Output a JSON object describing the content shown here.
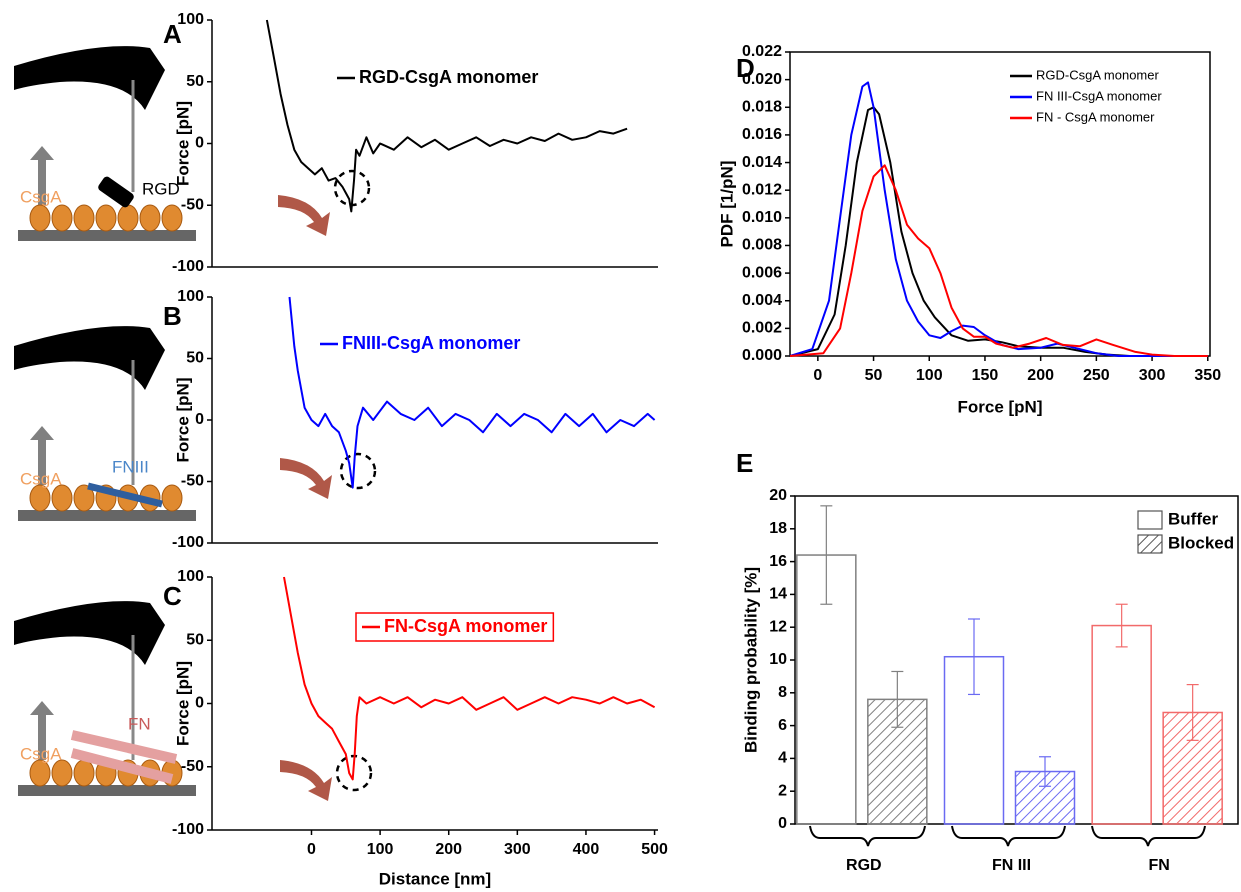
{
  "panels": [
    "A",
    "B",
    "C",
    "D",
    "E"
  ],
  "schematics": [
    {
      "substrate": "CsgA",
      "ligand": "RGD"
    },
    {
      "substrate": "CsgA",
      "ligand": "FNIII"
    },
    {
      "substrate": "CsgA",
      "ligand": "FN"
    }
  ],
  "chart_data": [
    {
      "type": "line",
      "ylabel": "Force [pN]",
      "xlim": [
        -145,
        505
      ],
      "ylim": [
        -100,
        100
      ],
      "yticks": [
        -100,
        -50,
        0,
        50,
        100
      ],
      "x": [
        -65,
        -55,
        -45,
        -35,
        -25,
        -15,
        -5,
        5,
        15,
        25,
        35,
        45,
        50,
        55,
        58,
        62,
        65,
        70,
        80,
        90,
        100,
        120,
        140,
        160,
        180,
        200,
        220,
        240,
        260,
        280,
        300,
        320,
        340,
        360,
        380,
        400,
        420,
        440,
        460
      ],
      "series": [
        {
          "name": "RGD-CsgA monomer",
          "color": "#000000",
          "values": [
            100,
            70,
            40,
            15,
            -5,
            -15,
            -20,
            -25,
            -20,
            -30,
            -28,
            -35,
            -40,
            -45,
            -55,
            -30,
            -5,
            -10,
            5,
            -8,
            0,
            -5,
            5,
            -3,
            3,
            -5,
            0,
            5,
            -2,
            3,
            0,
            5,
            2,
            8,
            3,
            5,
            10,
            8,
            12
          ]
        }
      ]
    },
    {
      "type": "line",
      "ylabel": "Force [pN]",
      "xlim": [
        -145,
        505
      ],
      "ylim": [
        -100,
        100
      ],
      "yticks": [
        -100,
        -50,
        0,
        50,
        100
      ],
      "x": [
        -32,
        -25,
        -20,
        -15,
        -10,
        0,
        10,
        20,
        30,
        40,
        50,
        55,
        60,
        63,
        67,
        75,
        90,
        110,
        130,
        150,
        170,
        190,
        210,
        230,
        250,
        270,
        290,
        310,
        330,
        350,
        370,
        390,
        410,
        430,
        450,
        470,
        490,
        500
      ],
      "series": [
        {
          "name": "FNIII-CsgA monomer",
          "color": "#0000ff",
          "values": [
            100,
            60,
            40,
            25,
            10,
            0,
            -5,
            5,
            -5,
            -10,
            -25,
            -35,
            -55,
            -30,
            -5,
            10,
            0,
            15,
            5,
            0,
            10,
            -5,
            5,
            0,
            -10,
            5,
            -5,
            5,
            0,
            -10,
            5,
            -5,
            5,
            -10,
            0,
            -5,
            5,
            0
          ]
        }
      ]
    },
    {
      "type": "line",
      "ylabel": "Force [pN]",
      "xlabel": "Distance [nm]",
      "xlim": [
        -145,
        505
      ],
      "ylim": [
        -100,
        100
      ],
      "yticks": [
        -100,
        -50,
        0,
        50,
        100
      ],
      "xticks": [
        0,
        100,
        200,
        300,
        400,
        500
      ],
      "x": [
        -40,
        -30,
        -20,
        -10,
        0,
        10,
        20,
        30,
        40,
        50,
        55,
        60,
        63,
        66,
        70,
        80,
        100,
        120,
        140,
        160,
        180,
        200,
        220,
        240,
        260,
        280,
        300,
        320,
        340,
        360,
        380,
        400,
        420,
        440,
        460,
        480,
        500
      ],
      "series": [
        {
          "name": "FN-CsgA monomer",
          "color": "#ff0000",
          "values": [
            100,
            70,
            40,
            15,
            0,
            -10,
            -15,
            -20,
            -30,
            -40,
            -55,
            -60,
            -40,
            -10,
            5,
            0,
            5,
            0,
            5,
            -3,
            3,
            0,
            5,
            -5,
            0,
            5,
            -5,
            0,
            5,
            0,
            5,
            3,
            0,
            5,
            0,
            3,
            -3
          ]
        }
      ]
    },
    {
      "type": "line",
      "ylabel": "PDF [1/pN]",
      "xlabel": "Force [pN]",
      "xlim": [
        -25,
        352
      ],
      "ylim": [
        0,
        0.022
      ],
      "xticks": [
        0,
        50,
        100,
        150,
        200,
        250,
        300,
        350
      ],
      "yticks": [
        {
          "value": 0,
          "label": "0.000"
        },
        {
          "value": 0.002,
          "label": "0.002"
        },
        {
          "value": 0.004,
          "label": "0.004"
        },
        {
          "value": 0.006,
          "label": "0.006"
        },
        {
          "value": 0.008,
          "label": "0.008"
        },
        {
          "value": 0.01,
          "label": "0.010"
        },
        {
          "value": 0.012,
          "label": "0.012"
        },
        {
          "value": 0.014,
          "label": "0.014"
        },
        {
          "value": 0.016,
          "label": "0.016"
        },
        {
          "value": 0.018,
          "label": "0.018"
        },
        {
          "value": 0.02,
          "label": "0.020"
        },
        {
          "value": 0.022,
          "label": "0.022"
        }
      ],
      "series": [
        {
          "name": "RGD-CsgA monomer",
          "color": "#000000",
          "x": [
            -25,
            0,
            15,
            25,
            35,
            45,
            50,
            55,
            65,
            75,
            85,
            95,
            105,
            120,
            135,
            150,
            165,
            180,
            200,
            220,
            240,
            260,
            280,
            350
          ],
          "values": [
            0,
            0.0005,
            0.003,
            0.008,
            0.014,
            0.0178,
            0.018,
            0.0175,
            0.014,
            0.009,
            0.006,
            0.004,
            0.0028,
            0.0015,
            0.0011,
            0.0012,
            0.001,
            0.0007,
            0.0006,
            0.0006,
            0.0003,
            0.0001,
            0,
            0
          ]
        },
        {
          "name": "FN III-CsgA monomer",
          "color": "#0000ff",
          "x": [
            -25,
            -5,
            10,
            20,
            30,
            40,
            45,
            50,
            60,
            70,
            80,
            90,
            100,
            110,
            120,
            130,
            140,
            150,
            165,
            180,
            200,
            215,
            230,
            250,
            270,
            350
          ],
          "values": [
            0,
            0.0005,
            0.004,
            0.01,
            0.016,
            0.0195,
            0.0198,
            0.018,
            0.012,
            0.007,
            0.004,
            0.0025,
            0.0015,
            0.0013,
            0.0018,
            0.0022,
            0.0021,
            0.0015,
            0.0008,
            0.0005,
            0.0006,
            0.0009,
            0.0006,
            0.0002,
            0,
            0
          ]
        },
        {
          "name": "FN - CsgA monomer",
          "color": "#ff0000",
          "x": [
            -25,
            5,
            20,
            30,
            40,
            50,
            60,
            70,
            80,
            90,
            100,
            110,
            120,
            130,
            140,
            150,
            160,
            175,
            190,
            205,
            220,
            235,
            250,
            265,
            285,
            300,
            320,
            350
          ],
          "values": [
            0,
            0.0002,
            0.002,
            0.006,
            0.0105,
            0.013,
            0.0138,
            0.012,
            0.0095,
            0.0085,
            0.0078,
            0.006,
            0.0035,
            0.002,
            0.0014,
            0.0014,
            0.0009,
            0.0006,
            0.0009,
            0.0013,
            0.0008,
            0.0007,
            0.0012,
            0.0008,
            0.0003,
            0.0001,
            0,
            0
          ]
        }
      ]
    },
    {
      "type": "bar",
      "ylabel": "Binding probability [%]",
      "ylim": [
        0,
        20
      ],
      "yticks": [
        0,
        2,
        4,
        6,
        8,
        10,
        12,
        14,
        16,
        18,
        20
      ],
      "categories": [
        "RGD",
        "FN III",
        "FN"
      ],
      "category_colors": [
        "#808080",
        "#6a6af2",
        "#f26a6a"
      ],
      "series": [
        {
          "name": "Buffer",
          "hatch": false,
          "values": [
            16.4,
            10.2,
            12.1
          ],
          "errors": [
            3.0,
            2.3,
            1.3
          ]
        },
        {
          "name": "Blocked",
          "hatch": true,
          "values": [
            7.6,
            3.2,
            6.8
          ],
          "errors": [
            1.7,
            0.9,
            1.7
          ]
        }
      ]
    }
  ]
}
